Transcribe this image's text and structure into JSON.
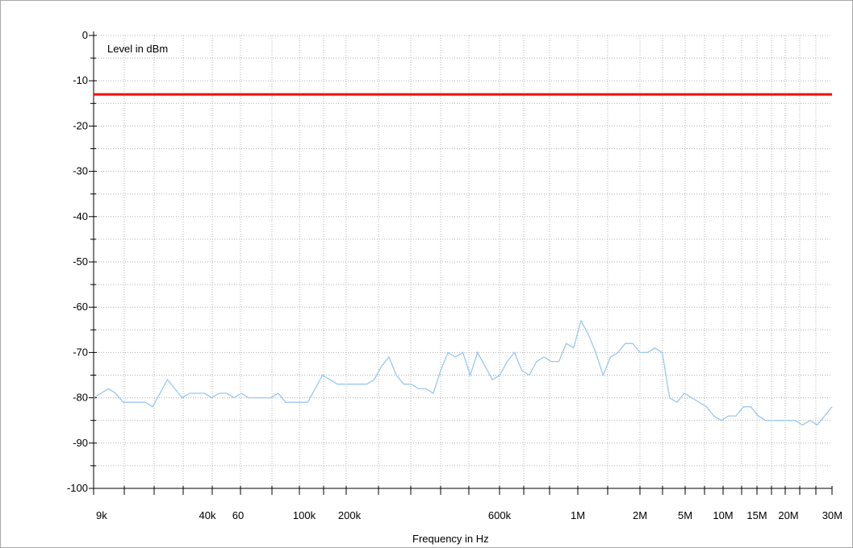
{
  "chart_data": {
    "type": "line",
    "title": "",
    "ylabel": "Level in dBm",
    "xlabel": "Frequency in Hz",
    "ylim": [
      -100,
      0
    ],
    "y_ticks": [
      0,
      -10,
      -20,
      -30,
      -40,
      -50,
      -60,
      -70,
      -80,
      -90,
      -100
    ],
    "x_ticks": [
      {
        "label": "9k"
      },
      {
        "label": "40k"
      },
      {
        "label": "60"
      },
      {
        "label": "100k"
      },
      {
        "label": "200k"
      },
      {
        "label": "600k"
      },
      {
        "label": "1M"
      },
      {
        "label": "2M"
      },
      {
        "label": "5M"
      },
      {
        "label": "10M"
      },
      {
        "label": "15M"
      },
      {
        "label": "20M"
      },
      {
        "label": "30M"
      }
    ],
    "grid": true,
    "series": [
      {
        "name": "",
        "color": "#ff0000",
        "x": [
          0,
          100
        ],
        "y": [
          -13,
          -13
        ]
      },
      {
        "name": "",
        "color": "#99c8f0",
        "x": [
          0,
          1,
          2,
          3,
          4,
          5,
          7,
          8,
          9,
          10,
          11,
          12,
          13,
          14,
          15,
          16,
          17,
          18,
          19,
          20,
          21,
          22,
          23,
          24,
          25,
          26,
          27,
          28,
          29,
          30,
          31,
          32,
          33,
          34,
          35,
          36,
          37,
          38,
          39,
          40,
          41,
          42,
          43,
          44,
          45,
          46,
          47,
          48,
          49,
          50,
          51,
          52,
          53,
          54,
          55,
          56,
          57,
          58,
          59,
          60,
          61,
          62,
          63,
          64,
          65,
          66,
          67,
          68,
          69,
          70,
          71,
          72,
          73,
          74,
          75,
          76,
          77,
          78,
          79,
          80,
          81,
          82,
          83,
          84,
          85,
          86,
          87,
          88,
          89,
          90,
          91,
          92,
          93,
          94,
          95,
          96,
          97,
          98,
          99,
          100
        ],
        "y": [
          -80,
          -79,
          -78,
          -79,
          -81,
          -81,
          -81,
          -82,
          -79,
          -76,
          -78,
          -80,
          -79,
          -79,
          -79,
          -80,
          -79,
          -79,
          -80,
          -79,
          -80,
          -80,
          -80,
          -80,
          -79,
          -81,
          -81,
          -81,
          -81,
          -78,
          -75,
          -76,
          -77,
          -77,
          -77,
          -77,
          -77,
          -76,
          -73,
          -71,
          -75,
          -77,
          -77,
          -78,
          -78,
          -79,
          -74,
          -70,
          -71,
          -70,
          -75,
          -70,
          -73,
          -76,
          -75,
          -72,
          -70,
          -74,
          -75,
          -72,
          -71,
          -72,
          -72,
          -68,
          -69,
          -63,
          -66,
          -70,
          -75,
          -71,
          -70,
          -68,
          -68,
          -70,
          -70,
          -69,
          -70,
          -80,
          -81,
          -79,
          -80,
          -81,
          -82,
          -84,
          -85,
          -84,
          -84,
          -82,
          -82,
          -84,
          -85,
          -85,
          -85,
          -85,
          -85,
          -86,
          -85,
          -86,
          -84,
          -82
        ]
      }
    ]
  }
}
